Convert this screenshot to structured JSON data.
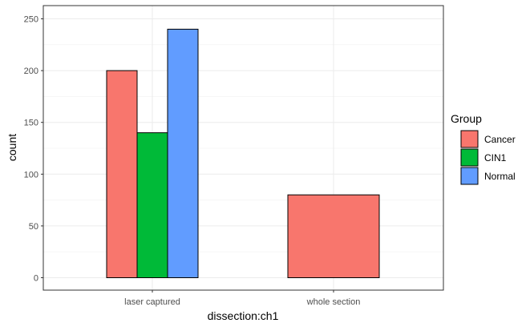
{
  "chart_data": {
    "type": "bar",
    "xlabel": "dissection:ch1",
    "ylabel": "count",
    "categories": [
      "laser captured",
      "whole section"
    ],
    "ylim": [
      0,
      250
    ],
    "yticks": [
      0,
      50,
      100,
      150,
      200,
      250
    ],
    "grid": true,
    "legend": {
      "title": "Group",
      "placement": "right"
    },
    "series": [
      {
        "name": "Cancer",
        "color": "#F8766D",
        "values": [
          200,
          80
        ]
      },
      {
        "name": "CIN1",
        "color": "#00BA38",
        "values": [
          140,
          null
        ]
      },
      {
        "name": "Normal",
        "color": "#619CFF",
        "values": [
          240,
          null
        ]
      }
    ]
  }
}
